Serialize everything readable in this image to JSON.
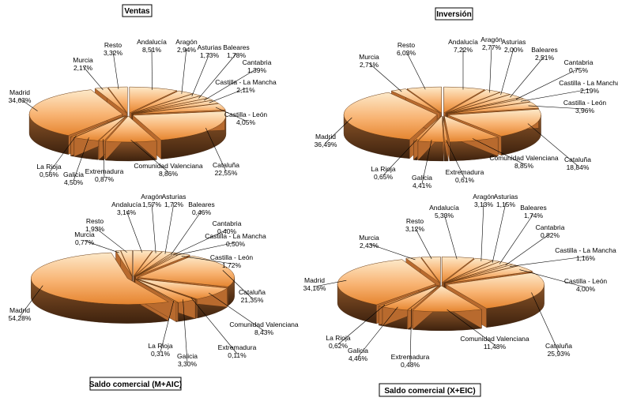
{
  "chart_data": [
    {
      "type": "pie",
      "title": "Ventas",
      "categories": [
        "Andalucía",
        "Aragón",
        "Asturias",
        "Baleares",
        "Cantabria",
        "Castilla - La Mancha",
        "Castilla - León",
        "Cataluña",
        "Comunidad Valenciana",
        "Extremadura",
        "Galicia",
        "La Rioja",
        "Madrid",
        "Murcia",
        "Resto"
      ],
      "values": [
        8.51,
        2.94,
        1.73,
        1.78,
        1.39,
        2.11,
        4.05,
        22.55,
        8.86,
        0.87,
        4.5,
        0.56,
        34.63,
        2.17,
        3.32
      ],
      "labels": [
        "8,51%",
        "2,94%",
        "1,73%",
        "1,78%",
        "1,39%",
        "2,11%",
        "4,05%",
        "22,55%",
        "8,86%",
        "0,87%",
        "4,50%",
        "0,56%",
        "34,63%",
        "2,17%",
        "3,32%"
      ]
    },
    {
      "type": "pie",
      "title": "Inversión",
      "categories": [
        "Andalucía",
        "Aragón",
        "Asturias",
        "Baleares",
        "Cantabria",
        "Castilla - La Mancha",
        "Castilla - León",
        "Cataluña",
        "Comunidad Valenciana",
        "Extremadura",
        "Galicia",
        "La Rioja",
        "Madrid",
        "Murcia",
        "Resto"
      ],
      "values": [
        7.22,
        2.77,
        2.0,
        2.51,
        0.75,
        2.19,
        3.96,
        18.84,
        8.85,
        0.61,
        4.41,
        0.65,
        36.49,
        2.71,
        6.03
      ],
      "labels": [
        "7,22%",
        "2,77%",
        "2,00%",
        "2,51%",
        "0,75%",
        "2,19%",
        "3,96%",
        "18,84%",
        "8,85%",
        "0,61%",
        "4,41%",
        "0,65%",
        "36,49%",
        "2,71%",
        "6,03%"
      ]
    },
    {
      "type": "pie",
      "title": "Saldo comercial (M+AIC)",
      "categories": [
        "Andalucía",
        "Aragón",
        "Asturias",
        "Baleares",
        "Cantabria",
        "Castilla - La Mancha",
        "Castilla - León",
        "Cataluña",
        "Comunidad Valenciana",
        "Extremadura",
        "Galicia",
        "La Rioja",
        "Madrid",
        "Murcia",
        "Resto"
      ],
      "values": [
        3.14,
        1.57,
        1.72,
        0.46,
        0.4,
        0.5,
        1.72,
        21.35,
        8.43,
        0.11,
        3.3,
        0.31,
        54.28,
        0.77,
        1.93
      ],
      "labels": [
        "3,14%",
        "1,57%",
        "1,72%",
        "0,46%",
        "0,40%",
        "0,50%",
        "1,72%",
        "21,35%",
        "8,43%",
        "0,11%",
        "3,30%",
        "0,31%",
        "54,28%",
        "0,77%",
        "1,93%"
      ]
    },
    {
      "type": "pie",
      "title": "Saldo comercial (X+EIC)",
      "categories": [
        "Andalucía",
        "Aragón",
        "Asturias",
        "Baleares",
        "Cantabria",
        "Castilla - La Mancha",
        "Castilla - León",
        "Cataluña",
        "Comunidad Valenciana",
        "Extremadura",
        "Galicia",
        "La Rioja",
        "Madrid",
        "Murcia",
        "Resto"
      ],
      "values": [
        5.33,
        3.13,
        1.15,
        1.74,
        0.82,
        1.16,
        4.0,
        25.93,
        11.48,
        0.48,
        4.46,
        0.62,
        34.16,
        2.43,
        3.12
      ],
      "labels": [
        "5,33%",
        "3,13%",
        "1,15%",
        "1,74%",
        "0,82%",
        "1,16%",
        "4,00%",
        "25,93%",
        "11,48%",
        "0,48%",
        "4,46%",
        "0,62%",
        "34,16%",
        "2,43%",
        "3,12%"
      ]
    }
  ],
  "colors": {
    "slice_light": "#fde2b8",
    "slice_mid": "#f5a25a",
    "slice_dark": "#e27d2a",
    "side": "#7a4a24",
    "side_dark": "#4a2a12",
    "leader": "#000000"
  }
}
